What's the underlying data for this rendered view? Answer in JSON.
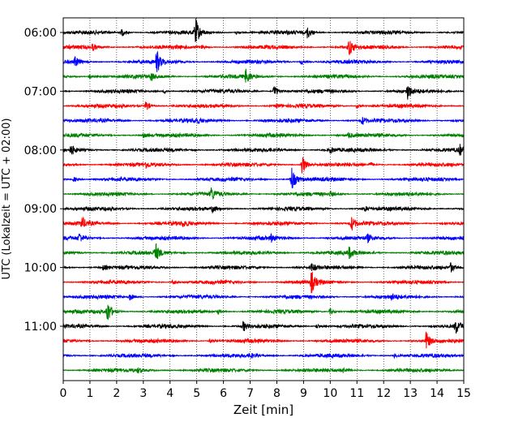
{
  "chart_data": {
    "type": "line",
    "xlabel": "Zeit  [min]",
    "ylabel": "UTC (Lokalzeit = UTC + 02:00)",
    "xlim": [
      0,
      15
    ],
    "x_ticks": [
      0,
      1,
      2,
      3,
      4,
      5,
      6,
      7,
      8,
      9,
      10,
      11,
      12,
      13,
      14,
      15
    ],
    "row_interval_minutes": 15,
    "y_tick_labels": [
      "06:00",
      "07:00",
      "08:00",
      "09:00",
      "10:00",
      "11:00"
    ],
    "grid": "vertical dotted lines at each minute",
    "trace_colors": [
      "#000000",
      "#ff0000",
      "#0000ff",
      "#008000"
    ],
    "rows": [
      {
        "time": "06:00",
        "color": "#000000",
        "events": [
          {
            "t": 2.2,
            "amp": 0.25
          },
          {
            "t": 4.95,
            "amp": 0.9
          },
          {
            "t": 9.15,
            "amp": 0.35
          },
          {
            "t": 6.5,
            "amp": 0.12
          }
        ]
      },
      {
        "time": "06:15",
        "color": "#ff0000",
        "events": [
          {
            "t": 1.1,
            "amp": 0.2
          },
          {
            "t": 10.7,
            "amp": 0.55
          },
          {
            "t": 5.2,
            "amp": 0.12
          }
        ]
      },
      {
        "time": "06:30",
        "color": "#0000ff",
        "events": [
          {
            "t": 0.45,
            "amp": 0.3
          },
          {
            "t": 3.5,
            "amp": 0.7
          },
          {
            "t": 8.9,
            "amp": 0.15
          }
        ]
      },
      {
        "time": "06:45",
        "color": "#008000",
        "events": [
          {
            "t": 1.0,
            "amp": 0.18
          },
          {
            "t": 3.3,
            "amp": 0.22
          },
          {
            "t": 6.85,
            "amp": 0.45
          }
        ]
      },
      {
        "time": "07:00",
        "color": "#000000",
        "events": [
          {
            "t": 7.9,
            "amp": 0.45
          },
          {
            "t": 12.9,
            "amp": 0.45
          },
          {
            "t": 3.8,
            "amp": 0.12
          }
        ]
      },
      {
        "time": "07:15",
        "color": "#ff0000",
        "events": [
          {
            "t": 3.1,
            "amp": 0.35
          },
          {
            "t": 11.0,
            "amp": 0.15
          },
          {
            "t": 8.0,
            "amp": 0.12
          }
        ]
      },
      {
        "time": "07:30",
        "color": "#0000ff",
        "events": [
          {
            "t": 11.2,
            "amp": 0.25
          },
          {
            "t": 5.0,
            "amp": 0.12
          }
        ]
      },
      {
        "time": "07:45",
        "color": "#008000",
        "events": [
          {
            "t": 3.0,
            "amp": 0.15
          },
          {
            "t": 10.7,
            "amp": 0.15
          }
        ]
      },
      {
        "time": "08:00",
        "color": "#000000",
        "events": [
          {
            "t": 0.3,
            "amp": 0.3
          },
          {
            "t": 14.85,
            "amp": 0.3
          },
          {
            "t": 10.0,
            "amp": 0.2
          }
        ]
      },
      {
        "time": "08:15",
        "color": "#ff0000",
        "events": [
          {
            "t": 8.95,
            "amp": 0.65
          },
          {
            "t": 3.1,
            "amp": 0.15
          },
          {
            "t": 11.5,
            "amp": 0.12
          }
        ]
      },
      {
        "time": "08:30",
        "color": "#0000ff",
        "events": [
          {
            "t": 8.55,
            "amp": 0.9
          },
          {
            "t": 0.4,
            "amp": 0.15
          }
        ]
      },
      {
        "time": "08:45",
        "color": "#008000",
        "events": [
          {
            "t": 5.55,
            "amp": 0.4
          },
          {
            "t": 10.0,
            "amp": 0.12
          }
        ]
      },
      {
        "time": "09:00",
        "color": "#000000",
        "events": [
          {
            "t": 5.6,
            "amp": 0.2
          },
          {
            "t": 11.3,
            "amp": 0.15
          }
        ]
      },
      {
        "time": "09:15",
        "color": "#ff0000",
        "events": [
          {
            "t": 0.7,
            "amp": 0.35
          },
          {
            "t": 10.8,
            "amp": 0.45
          },
          {
            "t": 4.5,
            "amp": 0.15
          }
        ]
      },
      {
        "time": "09:30",
        "color": "#0000ff",
        "events": [
          {
            "t": 0.6,
            "amp": 0.3
          },
          {
            "t": 7.8,
            "amp": 0.2
          },
          {
            "t": 11.4,
            "amp": 0.2
          }
        ]
      },
      {
        "time": "09:45",
        "color": "#008000",
        "events": [
          {
            "t": 3.45,
            "amp": 0.6
          },
          {
            "t": 10.7,
            "amp": 0.35
          }
        ]
      },
      {
        "time": "10:00",
        "color": "#000000",
        "events": [
          {
            "t": 1.5,
            "amp": 0.15
          },
          {
            "t": 9.3,
            "amp": 0.25
          },
          {
            "t": 14.5,
            "amp": 0.3
          }
        ]
      },
      {
        "time": "10:15",
        "color": "#ff0000",
        "events": [
          {
            "t": 9.3,
            "amp": 0.65
          },
          {
            "t": 4.1,
            "amp": 0.15
          }
        ]
      },
      {
        "time": "10:30",
        "color": "#0000ff",
        "events": [
          {
            "t": 2.5,
            "amp": 0.2
          },
          {
            "t": 12.3,
            "amp": 0.15
          }
        ]
      },
      {
        "time": "10:45",
        "color": "#008000",
        "events": [
          {
            "t": 1.65,
            "amp": 0.75
          },
          {
            "t": 10.0,
            "amp": 0.2
          },
          {
            "t": 5.8,
            "amp": 0.12
          }
        ]
      },
      {
        "time": "11:00",
        "color": "#000000",
        "events": [
          {
            "t": 6.75,
            "amp": 0.3
          },
          {
            "t": 14.7,
            "amp": 0.45
          },
          {
            "t": 9.5,
            "amp": 0.15
          }
        ]
      },
      {
        "time": "11:15",
        "color": "#ff0000",
        "events": [
          {
            "t": 13.6,
            "amp": 0.55
          },
          {
            "t": 5.5,
            "amp": 0.12
          }
        ]
      },
      {
        "time": "11:30",
        "color": "#0000ff",
        "events": [
          {
            "t": 7.0,
            "amp": 0.12
          },
          {
            "t": 12.4,
            "amp": 0.12
          }
        ]
      },
      {
        "time": "11:45",
        "color": "#008000",
        "events": [
          {
            "t": 10.5,
            "amp": 0.15
          },
          {
            "t": 2.8,
            "amp": 0.12
          }
        ]
      }
    ]
  }
}
